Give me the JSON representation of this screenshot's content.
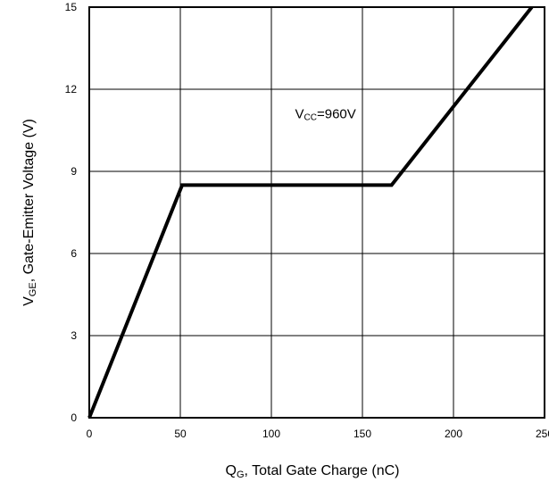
{
  "chart_data": {
    "type": "line",
    "xlabel": {
      "symbol": "Q",
      "sub": "G",
      "text": ", Total Gate Charge (nC)"
    },
    "ylabel": {
      "symbol": "V",
      "sub": "GE",
      "text": ", Gate-Emitter Voltage (V)"
    },
    "xlim": [
      0,
      250
    ],
    "ylim": [
      0,
      15
    ],
    "xticks": [
      0,
      50,
      100,
      150,
      200,
      250
    ],
    "yticks": [
      0,
      3,
      6,
      9,
      12,
      15
    ],
    "grid": true,
    "series": [
      {
        "x": [
          0,
          51,
          166,
          243
        ],
        "y": [
          0,
          8.5,
          8.5,
          15
        ]
      }
    ],
    "annotations": [
      {
        "symbol": "V",
        "sub": "CC",
        "text": "=960V",
        "x": 113,
        "y": 11.1
      }
    ]
  }
}
